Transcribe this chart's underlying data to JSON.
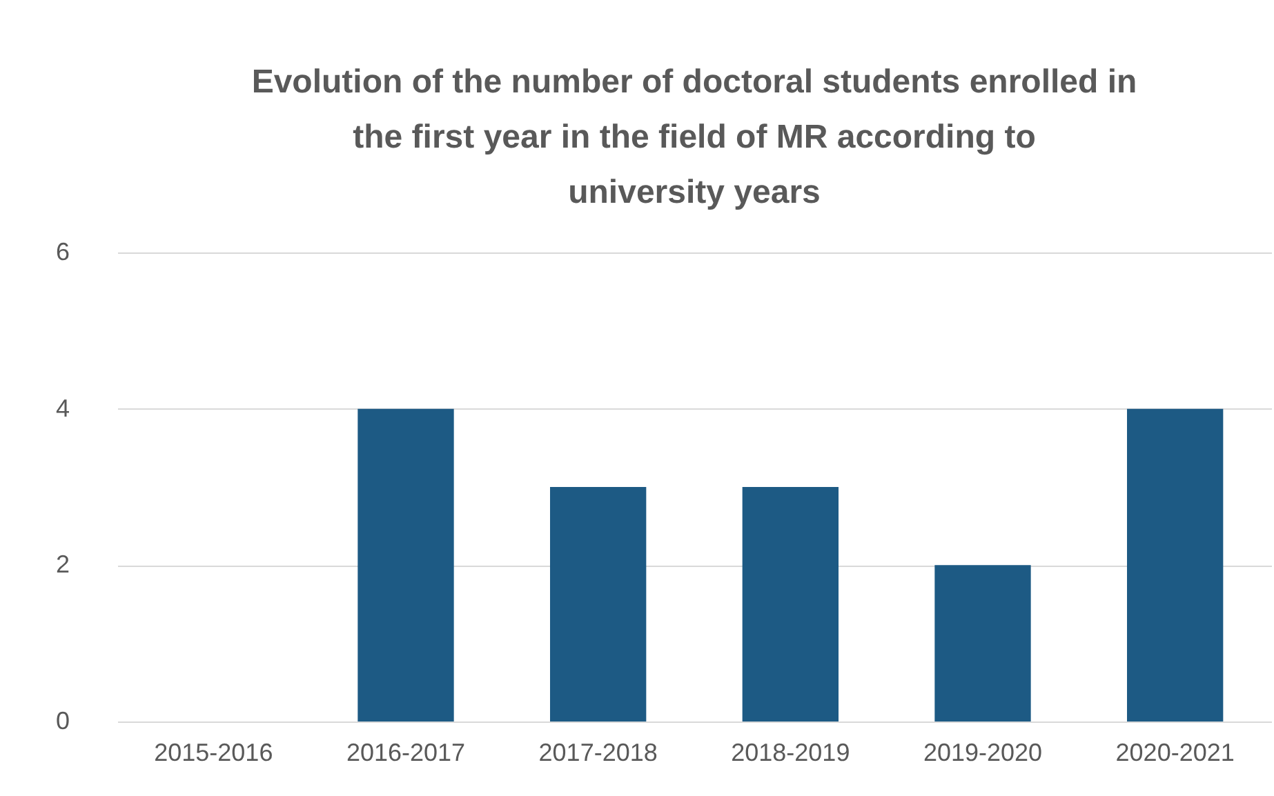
{
  "chart_data": {
    "type": "bar",
    "title": "Evolution of the number of doctoral students enrolled in the first year in the field of MR according to university years",
    "categories": [
      "2015-2016",
      "2016-2017",
      "2017-2018",
      "2018-2019",
      "2019-2020",
      "2020-2021"
    ],
    "values": [
      0,
      4,
      3,
      3,
      2,
      4
    ],
    "color": "#1d5a84",
    "ylim": [
      0,
      6
    ],
    "yticks": [
      0,
      2,
      4,
      6
    ],
    "grid": "y"
  }
}
